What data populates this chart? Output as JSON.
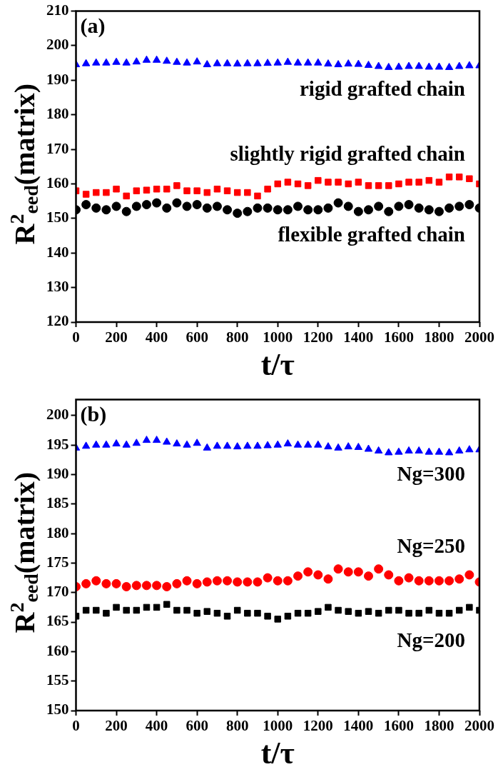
{
  "chart_data": [
    {
      "type": "scatter",
      "xlabel": "t/τ",
      "ylabel": "R$^{2}$$_{eed}$(matrix)",
      "xlim": [
        0,
        2000
      ],
      "xticks": [
        0,
        200,
        400,
        600,
        800,
        1000,
        1200,
        1400,
        1600,
        1800,
        2000
      ],
      "ylim": [
        120,
        210
      ],
      "yticks": [
        120,
        130,
        140,
        150,
        160,
        170,
        180,
        190,
        200,
        210
      ],
      "grid": false,
      "x": [
        0,
        50,
        100,
        150,
        200,
        250,
        300,
        350,
        400,
        450,
        500,
        550,
        600,
        650,
        700,
        750,
        800,
        850,
        900,
        950,
        1000,
        1050,
        1100,
        1150,
        1200,
        1250,
        1300,
        1350,
        1400,
        1450,
        1500,
        1550,
        1600,
        1650,
        1700,
        1750,
        1800,
        1850,
        1900,
        1950,
        2000
      ],
      "series": [
        {
          "name": "rigid grafted chain",
          "color": "#0000ff",
          "marker": "triangle",
          "values": [
            194.5,
            194.8,
            195,
            195,
            195.2,
            195,
            195.3,
            195.8,
            195.8,
            195.5,
            195.2,
            195,
            195.3,
            194.5,
            194.8,
            194.8,
            194.7,
            194.8,
            194.8,
            194.9,
            195,
            195.2,
            195,
            195,
            195,
            194.7,
            194.5,
            194.7,
            194.6,
            194.3,
            194,
            193.7,
            193.8,
            194,
            194,
            193.8,
            193.8,
            193.7,
            194,
            194.2,
            194.2
          ]
        },
        {
          "name": "slightly rigid grafted chain",
          "color": "#ff0000",
          "marker": "square",
          "values": [
            158,
            157,
            157.5,
            157.5,
            158.5,
            156.5,
            158,
            158.2,
            158.5,
            158.5,
            159.5,
            158,
            158,
            157.5,
            158.5,
            158,
            157.5,
            157.5,
            156.5,
            158.5,
            160,
            160.5,
            160,
            159.5,
            161,
            160.5,
            160.5,
            160,
            160.5,
            159.5,
            159.5,
            159.5,
            160,
            160.5,
            160.5,
            161,
            160.5,
            162,
            162,
            161.5,
            160
          ]
        },
        {
          "name": "flexible grafted chain",
          "color": "#000000",
          "marker": "circle",
          "values": [
            152.5,
            154,
            153,
            152.5,
            153.5,
            152,
            153.5,
            154,
            154.5,
            153,
            154.5,
            153.5,
            154,
            153,
            153.5,
            152.5,
            151.5,
            152,
            153,
            153,
            152.5,
            152.5,
            153.5,
            152.5,
            152.5,
            153,
            154.5,
            153.5,
            152,
            152.5,
            153.5,
            152,
            153.5,
            154,
            153,
            152.5,
            152,
            153,
            153.5,
            154,
            153
          ]
        }
      ],
      "annotations": [
        "(a)"
      ]
    },
    {
      "type": "scatter",
      "xlabel": "t/τ",
      "ylabel": "R$^{2}$$_{eed}$(matrix)",
      "xlim": [
        0,
        2000
      ],
      "xticks": [
        0,
        200,
        400,
        600,
        800,
        1000,
        1200,
        1400,
        1600,
        1800,
        2000
      ],
      "ylim": [
        150,
        202.7
      ],
      "yticks": [
        150,
        155,
        160,
        165,
        170,
        175,
        180,
        185,
        190,
        195,
        200
      ],
      "grid": false,
      "x": [
        0,
        50,
        100,
        150,
        200,
        250,
        300,
        350,
        400,
        450,
        500,
        550,
        600,
        650,
        700,
        750,
        800,
        850,
        900,
        950,
        1000,
        1050,
        1100,
        1150,
        1200,
        1250,
        1300,
        1350,
        1400,
        1450,
        1500,
        1550,
        1600,
        1650,
        1700,
        1750,
        1800,
        1850,
        1900,
        1950,
        2000
      ],
      "series": [
        {
          "name": "Ng=300",
          "color": "#0000ff",
          "marker": "triangle",
          "values": [
            194.5,
            194.8,
            195,
            195,
            195.2,
            195,
            195.3,
            195.8,
            195.8,
            195.5,
            195.2,
            195,
            195.3,
            194.5,
            194.8,
            194.8,
            194.7,
            194.8,
            194.8,
            194.9,
            195,
            195.2,
            195,
            195,
            195,
            194.7,
            194.5,
            194.7,
            194.6,
            194.3,
            194,
            193.7,
            193.8,
            194,
            194,
            193.8,
            193.8,
            193.7,
            194,
            194.2,
            194.2
          ]
        },
        {
          "name": "Ng=250",
          "color": "#ff0000",
          "marker": "circle",
          "values": [
            171,
            171.5,
            172,
            171.5,
            171.5,
            171,
            171.2,
            171.2,
            171.2,
            171,
            171.5,
            172,
            171.5,
            171.8,
            172,
            172,
            171.8,
            171.8,
            171.8,
            172.5,
            172,
            172,
            172.8,
            173.5,
            173,
            172.3,
            174,
            173.5,
            173.5,
            172.8,
            174,
            173,
            172,
            172.5,
            172,
            172,
            172,
            172,
            172.3,
            173,
            171.8
          ]
        },
        {
          "name": "Ng=200",
          "color": "#000000",
          "marker": "square",
          "values": [
            166,
            167,
            167,
            166.5,
            167.5,
            167,
            167,
            167.5,
            167.5,
            168,
            167,
            167,
            166.5,
            166.8,
            166.5,
            166,
            167,
            166.5,
            166.5,
            166,
            165.5,
            166,
            166.5,
            166.5,
            166.8,
            167.5,
            167,
            166.8,
            166.5,
            166.8,
            166.5,
            167,
            167,
            166.5,
            166.5,
            167,
            166.5,
            166.5,
            167,
            167.5,
            167
          ]
        }
      ],
      "annotations": [
        "(b)"
      ]
    }
  ]
}
